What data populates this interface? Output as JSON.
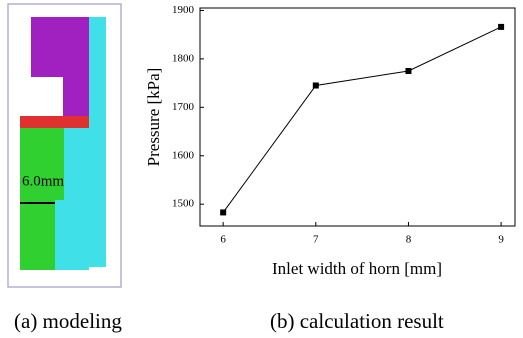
{
  "modeling": {
    "label": "6.0mm",
    "caption": "(a)   modeling"
  },
  "chart_data": {
    "type": "line",
    "x_label": "Inlet width of horn [mm]",
    "y_label": "Pressure [kPa]",
    "caption": "(b) calculation result",
    "x": [
      6,
      7,
      8,
      9
    ],
    "series": [
      {
        "color": "#000000",
        "values": [
          1483,
          1745,
          1775,
          1866
        ]
      }
    ],
    "xlim": [
      5.75,
      9.15
    ],
    "xticks": [
      6,
      7,
      8,
      9
    ],
    "ylim": [
      1455,
      1905
    ],
    "yticks": [
      1500,
      1600,
      1700,
      1800,
      1900
    ]
  }
}
